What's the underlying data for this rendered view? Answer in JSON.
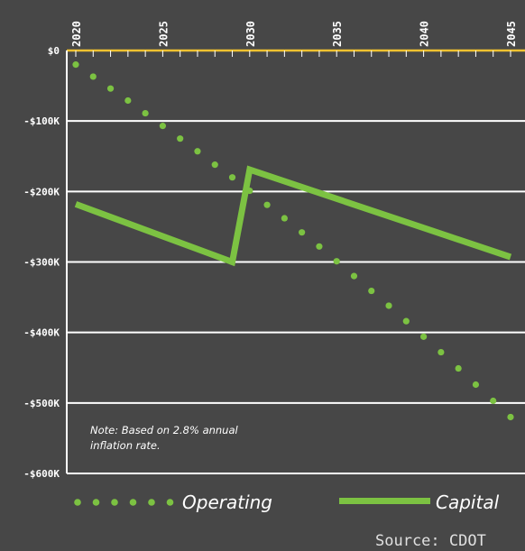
{
  "chart_data": {
    "type": "line",
    "x_ticks": [
      2020,
      2025,
      2030,
      2035,
      2040,
      2045
    ],
    "y_ticks": [
      {
        "value": 0,
        "label": "$0"
      },
      {
        "value": -100000,
        "label": "-$100K"
      },
      {
        "value": -200000,
        "label": "-$200K"
      },
      {
        "value": -300000,
        "label": "-$300K"
      },
      {
        "value": -400000,
        "label": "-$400K"
      },
      {
        "value": -500000,
        "label": "-$500K"
      },
      {
        "value": -600000,
        "label": "-$600K"
      }
    ],
    "xlim": [
      2020,
      2045
    ],
    "ylim": [
      -600000,
      0
    ],
    "series": [
      {
        "name": "Operating",
        "style": "dotted",
        "points": [
          [
            2020,
            -20000
          ],
          [
            2021,
            -37000
          ],
          [
            2022,
            -54000
          ],
          [
            2023,
            -71000
          ],
          [
            2024,
            -89000
          ],
          [
            2025,
            -107000
          ],
          [
            2026,
            -125000
          ],
          [
            2027,
            -143000
          ],
          [
            2028,
            -162000
          ],
          [
            2029,
            -180000
          ],
          [
            2030,
            -199000
          ],
          [
            2031,
            -219000
          ],
          [
            2032,
            -238000
          ],
          [
            2033,
            -258000
          ],
          [
            2034,
            -278000
          ],
          [
            2035,
            -299000
          ],
          [
            2036,
            -320000
          ],
          [
            2037,
            -341000
          ],
          [
            2038,
            -362000
          ],
          [
            2039,
            -384000
          ],
          [
            2040,
            -406000
          ],
          [
            2041,
            -428000
          ],
          [
            2042,
            -451000
          ],
          [
            2043,
            -474000
          ],
          [
            2044,
            -497000
          ],
          [
            2045,
            -520000
          ]
        ]
      },
      {
        "name": "Capital",
        "style": "solid",
        "points": [
          [
            2020,
            -218000
          ],
          [
            2029,
            -300000
          ],
          [
            2030,
            -169000
          ],
          [
            2045,
            -293000
          ]
        ]
      }
    ],
    "note": "Note:  Based on 2.8% annual inflation rate.",
    "note_lines": [
      "Note:  Based on 2.8% annual",
      "inflation rate."
    ],
    "source": "Source: CDOT",
    "colors": {
      "background": "#474747",
      "series": "#7cc242",
      "grid": "#ffffff",
      "zero_line": "#f2c230"
    }
  }
}
